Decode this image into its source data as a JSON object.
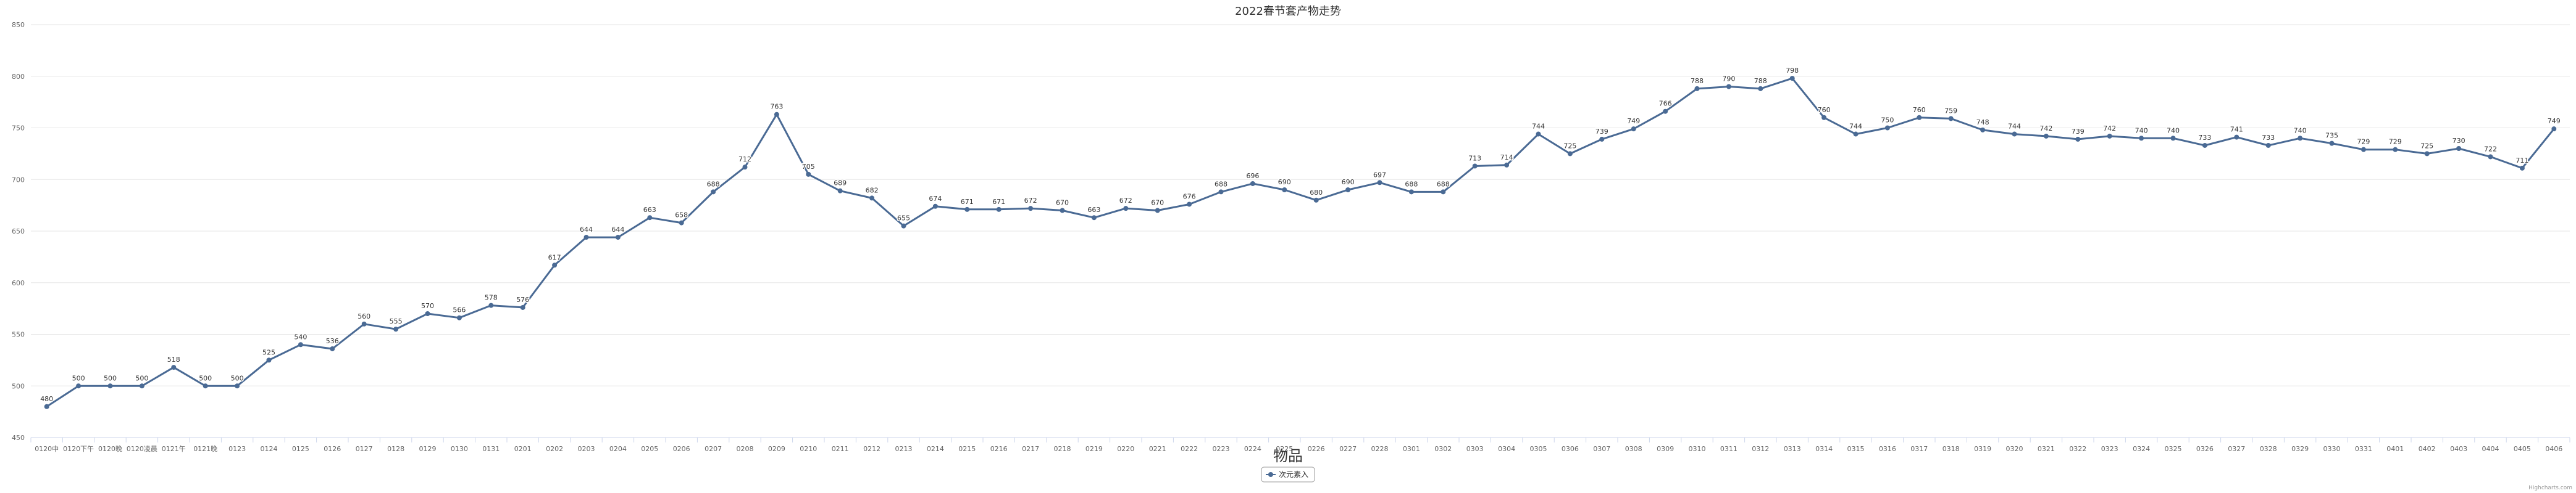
{
  "chart_data": {
    "type": "line",
    "title": "2022春节套产物走势",
    "xlabel": "物品",
    "ylabel": "",
    "ylim": [
      450,
      850
    ],
    "yticks": [
      450,
      500,
      550,
      600,
      650,
      700,
      750,
      800,
      850
    ],
    "grid": true,
    "legend_position": "bottom-center",
    "credits": "Highcharts.com",
    "categories": [
      "0120中",
      "0120下午",
      "0120晚",
      "0120凌晨",
      "0121午",
      "0121晚",
      "0123",
      "0124",
      "0125",
      "0126",
      "0127",
      "0128",
      "0129",
      "0130",
      "0131",
      "0201",
      "0202",
      "0203",
      "0204",
      "0205",
      "0206",
      "0207",
      "0208",
      "0209",
      "0210",
      "0211",
      "0212",
      "0213",
      "0214",
      "0215",
      "0216",
      "0217",
      "0218",
      "0219",
      "0220",
      "0221",
      "0222",
      "0223",
      "0224",
      "0225",
      "0226",
      "0227",
      "0228",
      "0301",
      "0302",
      "0303",
      "0304",
      "0305",
      "0306",
      "0307",
      "0308",
      "0309",
      "0310",
      "0311",
      "0312",
      "0313",
      "0314",
      "0315",
      "0316",
      "0317",
      "0318",
      "0319",
      "0320",
      "0321",
      "0322",
      "0323",
      "0324",
      "0325",
      "0326",
      "0327",
      "0328",
      "0329",
      "0330",
      "0331",
      "0401",
      "0402",
      "0403",
      "0404",
      "0405",
      "0406"
    ],
    "series": [
      {
        "name": "次元素入",
        "color": "#4a6a94",
        "values": [
          480,
          500,
          500,
          500,
          518,
          500,
          500,
          525,
          540,
          536,
          560,
          555,
          570,
          566,
          578,
          576,
          617,
          644,
          644,
          663,
          658,
          688,
          712,
          763,
          705,
          689,
          682,
          655,
          674,
          671,
          671,
          672,
          670,
          663,
          672,
          670,
          676,
          688,
          696,
          690,
          680,
          690,
          697,
          688,
          688,
          713,
          714,
          744,
          725,
          739,
          749,
          766,
          788,
          790,
          788,
          798,
          760,
          744,
          750,
          760,
          759,
          748,
          744,
          742,
          739,
          742,
          740,
          740,
          733,
          741,
          733,
          740,
          735,
          729,
          729,
          725,
          730,
          722,
          711,
          749
        ]
      }
    ]
  }
}
